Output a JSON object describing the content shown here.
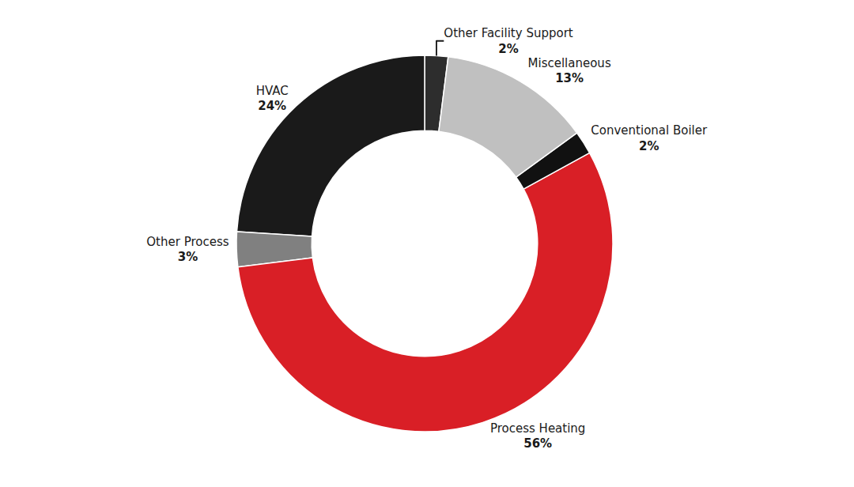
{
  "chart_data": {
    "type": "pie",
    "categories": [
      "Other Facility Support",
      "HVAC",
      "Other Process",
      "Process Heating",
      "Conventional Boiler",
      "Miscellaneous"
    ],
    "values": [
      2,
      24,
      3,
      56,
      2,
      13
    ],
    "value_labels": [
      "2%",
      "24%",
      "3%",
      "56%",
      "2%",
      "13%"
    ],
    "colors": [
      "#2d2d2d",
      "#1a1a1a",
      "#808080",
      "#d91f26",
      "#111111",
      "#c0c0c0"
    ],
    "data_labels": true
  }
}
